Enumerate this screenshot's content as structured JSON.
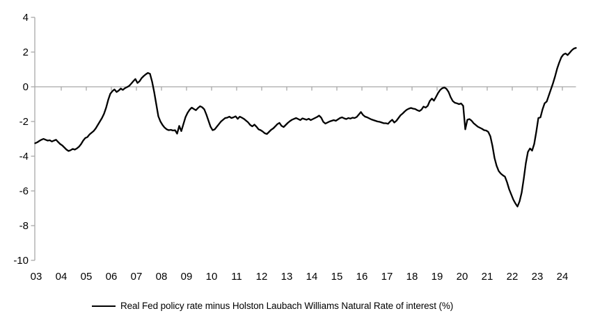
{
  "chart_data": {
    "type": "line",
    "title": "",
    "legend": [
      "Real Fed policy rate minus Holston Laubach Williams Natural Rate of interest (%)"
    ],
    "legend_position": "bottom",
    "frequency": "monthly",
    "x_start_year": 2003,
    "x_tick_labels": [
      "03",
      "04",
      "05",
      "06",
      "07",
      "08",
      "09",
      "10",
      "11",
      "12",
      "13",
      "14",
      "15",
      "16",
      "17",
      "18",
      "19",
      "20",
      "21",
      "22",
      "23",
      "24"
    ],
    "y_ticks": [
      4,
      2,
      0,
      -2,
      -4,
      -6,
      -8,
      -10
    ],
    "ylim": [
      -10,
      4
    ],
    "grid": "horizontal-zero-line-only",
    "colors": {
      "series": "#000000",
      "axis": "#a8a8a8",
      "text": "#000000"
    },
    "series": [
      {
        "name": "Real Fed policy rate minus Holston Laubach Williams Natural Rate of interest (%)",
        "values": [
          -3.25,
          -3.2,
          -3.12,
          -3.05,
          -3.0,
          -3.05,
          -3.1,
          -3.08,
          -3.15,
          -3.1,
          -3.05,
          -3.18,
          -3.3,
          -3.38,
          -3.5,
          -3.62,
          -3.7,
          -3.65,
          -3.58,
          -3.62,
          -3.55,
          -3.45,
          -3.3,
          -3.1,
          -2.95,
          -2.9,
          -2.75,
          -2.65,
          -2.55,
          -2.4,
          -2.2,
          -2.0,
          -1.8,
          -1.55,
          -1.2,
          -0.75,
          -0.4,
          -0.25,
          -0.15,
          -0.3,
          -0.22,
          -0.1,
          -0.18,
          -0.08,
          -0.02,
          0.05,
          0.18,
          0.32,
          0.45,
          0.22,
          0.32,
          0.5,
          0.62,
          0.72,
          0.8,
          0.75,
          0.3,
          -0.3,
          -1.0,
          -1.7,
          -2.0,
          -2.2,
          -2.35,
          -2.45,
          -2.5,
          -2.48,
          -2.52,
          -2.5,
          -2.7,
          -2.25,
          -2.55,
          -2.15,
          -1.75,
          -1.5,
          -1.32,
          -1.2,
          -1.28,
          -1.35,
          -1.22,
          -1.12,
          -1.18,
          -1.3,
          -1.6,
          -1.95,
          -2.3,
          -2.5,
          -2.45,
          -2.3,
          -2.15,
          -2.0,
          -1.9,
          -1.8,
          -1.78,
          -1.72,
          -1.8,
          -1.76,
          -1.7,
          -1.85,
          -1.72,
          -1.78,
          -1.85,
          -1.95,
          -2.05,
          -2.2,
          -2.28,
          -2.18,
          -2.3,
          -2.45,
          -2.5,
          -2.58,
          -2.68,
          -2.72,
          -2.6,
          -2.48,
          -2.4,
          -2.28,
          -2.15,
          -2.08,
          -2.25,
          -2.32,
          -2.2,
          -2.08,
          -1.98,
          -1.9,
          -1.85,
          -1.8,
          -1.86,
          -1.92,
          -1.82,
          -1.86,
          -1.9,
          -1.84,
          -1.92,
          -1.86,
          -1.8,
          -1.74,
          -1.66,
          -1.78,
          -2.02,
          -2.12,
          -2.06,
          -2.0,
          -1.96,
          -1.92,
          -1.96,
          -1.88,
          -1.8,
          -1.76,
          -1.82,
          -1.86,
          -1.8,
          -1.83,
          -1.78,
          -1.8,
          -1.74,
          -1.6,
          -1.45,
          -1.62,
          -1.72,
          -1.76,
          -1.82,
          -1.88,
          -1.92,
          -1.96,
          -2.0,
          -2.02,
          -2.06,
          -2.1,
          -2.1,
          -2.13,
          -2.0,
          -1.9,
          -2.06,
          -1.96,
          -1.8,
          -1.64,
          -1.54,
          -1.42,
          -1.32,
          -1.26,
          -1.22,
          -1.26,
          -1.28,
          -1.35,
          -1.4,
          -1.32,
          -1.14,
          -1.2,
          -1.1,
          -0.82,
          -0.68,
          -0.8,
          -0.58,
          -0.35,
          -0.18,
          -0.08,
          -0.04,
          -0.12,
          -0.3,
          -0.6,
          -0.82,
          -0.92,
          -0.95,
          -1.0,
          -0.96,
          -1.1,
          -2.45,
          -1.9,
          -1.86,
          -1.95,
          -2.1,
          -2.2,
          -2.3,
          -2.36,
          -2.42,
          -2.5,
          -2.52,
          -2.6,
          -2.85,
          -3.4,
          -4.1,
          -4.55,
          -4.85,
          -5.0,
          -5.1,
          -5.18,
          -5.5,
          -5.9,
          -6.2,
          -6.5,
          -6.72,
          -6.9,
          -6.6,
          -6.1,
          -5.3,
          -4.4,
          -3.75,
          -3.55,
          -3.68,
          -3.3,
          -2.6,
          -1.8,
          -1.76,
          -1.3,
          -0.95,
          -0.85,
          -0.5,
          -0.15,
          0.2,
          0.6,
          1.05,
          1.4,
          1.7,
          1.86,
          1.92,
          1.83,
          1.96,
          2.1,
          2.2,
          2.24
        ]
      }
    ]
  },
  "legend": {
    "label": "Real Fed policy rate minus Holston Laubach Williams Natural Rate of interest (%)"
  }
}
